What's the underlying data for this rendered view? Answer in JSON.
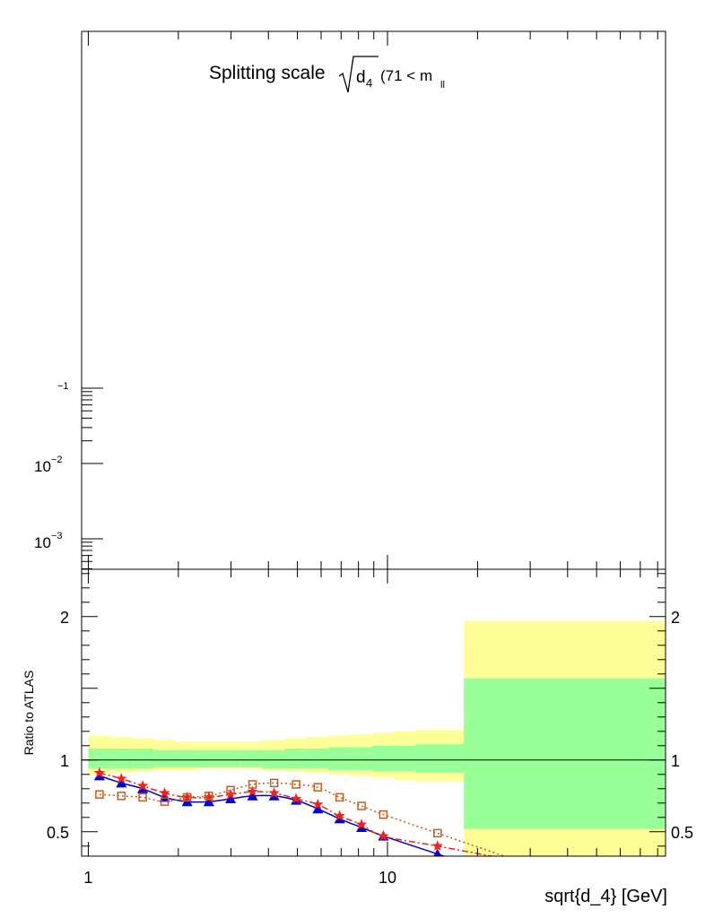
{
  "chart_data": [
    {
      "type": "line",
      "panel": "main",
      "title": "Splitting scale",
      "title_symbol": "d",
      "title_symbol_sub": "4",
      "title_suffix": "(71 < m",
      "title_suffix_sub": "ll",
      "x_scale": "log",
      "y_scale": "log",
      "y_tick_labels": [
        {
          "value": 0.1,
          "base": "",
          "exp": "−1"
        },
        {
          "value": 0.01,
          "base": "10",
          "exp": "−2"
        },
        {
          "value": 0.001,
          "base": "10",
          "exp": "−3"
        }
      ],
      "series": []
    },
    {
      "type": "line",
      "panel": "ratio",
      "x_scale": "log",
      "xlim": [
        0.95,
        85
      ],
      "ylim": [
        0.33,
        2.33
      ],
      "xlabel": "sqrt{d_4} [GeV]",
      "ylabel": "Ratio to ATLAS",
      "x_tick_labels": [
        {
          "value": 1,
          "label": "1"
        },
        {
          "value": 10,
          "label": "10"
        }
      ],
      "y_tick_labels": [
        {
          "value": 0.5,
          "label": "0.5"
        },
        {
          "value": 1,
          "label": "1"
        },
        {
          "value": 2,
          "label": "2"
        }
      ],
      "reference_line": 1,
      "bins": [
        1.0,
        1.18,
        1.4,
        1.65,
        1.96,
        2.32,
        2.74,
        3.24,
        3.83,
        4.53,
        5.36,
        6.34,
        7.5,
        8.87,
        10.5,
        12.4,
        18.0,
        85.0
      ],
      "uncertainty_bands": [
        {
          "name": "stat",
          "color": "#99ff99",
          "lower": [
            0.94,
            0.94,
            0.94,
            0.95,
            0.95,
            0.95,
            0.95,
            0.95,
            0.94,
            0.94,
            0.94,
            0.93,
            0.93,
            0.92,
            0.92,
            0.91,
            0.52
          ],
          "upper": [
            1.08,
            1.08,
            1.08,
            1.07,
            1.07,
            1.07,
            1.07,
            1.07,
            1.07,
            1.08,
            1.08,
            1.09,
            1.09,
            1.1,
            1.1,
            1.11,
            1.57
          ]
        },
        {
          "name": "total",
          "color": "#ffff99",
          "lower": [
            0.9,
            0.91,
            0.92,
            0.93,
            0.93,
            0.94,
            0.94,
            0.94,
            0.93,
            0.92,
            0.91,
            0.9,
            0.89,
            0.88,
            0.86,
            0.85,
            0.33
          ],
          "upper": [
            1.17,
            1.16,
            1.15,
            1.14,
            1.13,
            1.13,
            1.13,
            1.13,
            1.14,
            1.15,
            1.16,
            1.17,
            1.18,
            1.19,
            1.2,
            1.21,
            1.97
          ]
        }
      ],
      "series": [
        {
          "marker": "triangle",
          "color": "#0000cc",
          "line": "solid",
          "x": [
            1.09,
            1.29,
            1.52,
            1.8,
            2.14,
            2.53,
            2.99,
            3.54,
            4.18,
            4.95,
            5.85,
            6.92,
            8.19,
            9.69,
            14.7
          ],
          "y": [
            0.89,
            0.84,
            0.8,
            0.74,
            0.71,
            0.71,
            0.73,
            0.75,
            0.75,
            0.72,
            0.66,
            0.59,
            0.53,
            0.47,
            0.345
          ]
        },
        {
          "marker": "star",
          "color": "#ee2222",
          "line": "dashdot",
          "x": [
            1.09,
            1.29,
            1.52,
            1.8,
            2.14,
            2.53,
            2.99,
            3.54,
            4.18,
            4.95,
            5.85,
            6.92,
            8.19,
            9.69,
            14.7
          ],
          "y": [
            0.91,
            0.87,
            0.82,
            0.77,
            0.74,
            0.74,
            0.76,
            0.78,
            0.77,
            0.73,
            0.69,
            0.61,
            0.55,
            0.47,
            0.4
          ]
        },
        {
          "marker": "open-square",
          "color": "#c85a1e",
          "line": "dotted",
          "x": [
            1.09,
            1.29,
            1.52,
            1.8,
            2.14,
            2.53,
            2.99,
            3.54,
            4.18,
            4.95,
            5.85,
            6.92,
            8.19,
            9.69,
            14.7
          ],
          "y": [
            0.76,
            0.75,
            0.74,
            0.71,
            0.74,
            0.75,
            0.79,
            0.83,
            0.84,
            0.83,
            0.81,
            0.74,
            0.68,
            0.62,
            0.49
          ]
        }
      ]
    }
  ]
}
